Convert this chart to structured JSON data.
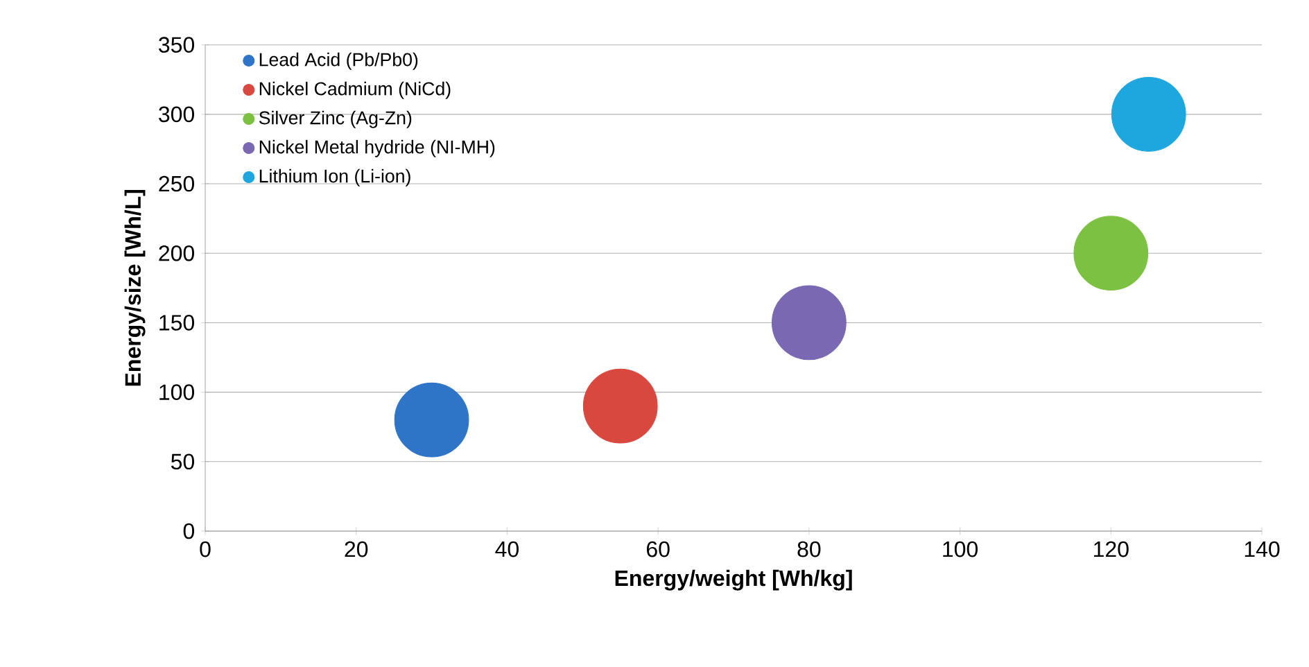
{
  "chart_data": {
    "type": "bubble",
    "xlabel": "Energy/weight [Wh/kg]",
    "ylabel": "Energy/size [Wh/L]",
    "xlim": [
      0,
      140
    ],
    "xticks": [
      0,
      20,
      40,
      60,
      80,
      100,
      120,
      140
    ],
    "ylim": [
      0,
      350
    ],
    "yticks": [
      0,
      50,
      100,
      150,
      200,
      250,
      300,
      350
    ],
    "grid": "y",
    "legend": "top left",
    "series": [
      {
        "name": "Lead Acid (Pb/Pb0)",
        "color": "#2e75c8",
        "x": [
          30
        ],
        "values": [
          80
        ],
        "sizes": [
          1
        ]
      },
      {
        "name": "Nickel Cadmium (NiCd)",
        "color": "#d9483f",
        "x": [
          55
        ],
        "values": [
          90
        ],
        "sizes": [
          1
        ]
      },
      {
        "name": "Silver Zinc (Ag-Zn)",
        "color": "#7cc142",
        "x": [
          120
        ],
        "values": [
          200
        ],
        "sizes": [
          1
        ]
      },
      {
        "name": "Nickel Metal hydride (NI-MH)",
        "color": "#7a68b2",
        "x": [
          80
        ],
        "values": [
          150
        ],
        "sizes": [
          1
        ]
      },
      {
        "name": "Lithium Ion (Li-ion)",
        "color": "#1ea6df",
        "x": [
          125
        ],
        "values": [
          300
        ],
        "sizes": [
          1
        ]
      }
    ]
  }
}
